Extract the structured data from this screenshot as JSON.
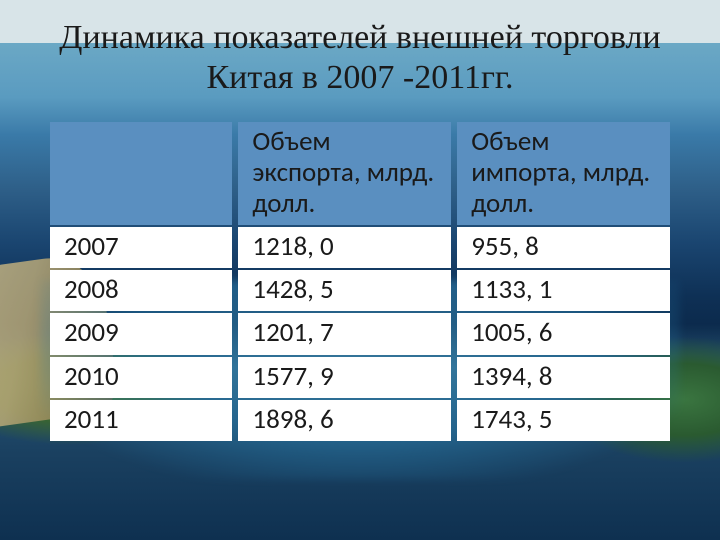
{
  "title": "Динамика показателей внешней торговли Китая в 2007 -2011гг.",
  "table": {
    "header_bg": "#5a8fc0",
    "cell_bg": "#ffffff",
    "text_color": "#1a1a1a",
    "font_size_pt": 20,
    "columns": [
      {
        "label": ""
      },
      {
        "label": "Объем экспорта, млрд. долл."
      },
      {
        "label": "Объем импорта, млрд. долл."
      }
    ],
    "rows": [
      {
        "year": "2007",
        "export": "1218, 0",
        "import": "955, 8"
      },
      {
        "year": "2008",
        "export": "1428, 5",
        "import": "1133, 1"
      },
      {
        "year": "2009",
        "export": "1201, 7",
        "import": "1005, 6"
      },
      {
        "year": "2010",
        "export": "1577, 9",
        "import": "1394, 8"
      },
      {
        "year": "2011",
        "export": "1898, 6",
        "import": "1743, 5"
      }
    ]
  },
  "background": {
    "sky_colors": [
      "#d8e4e8",
      "#6ba8c5",
      "#3a7aa8",
      "#0a2545"
    ],
    "land_colors": [
      "#4a7a3a",
      "#2a5a30"
    ],
    "rock_colors": [
      "#c8b888",
      "#706040"
    ],
    "water_color": "#4aa0c8"
  }
}
